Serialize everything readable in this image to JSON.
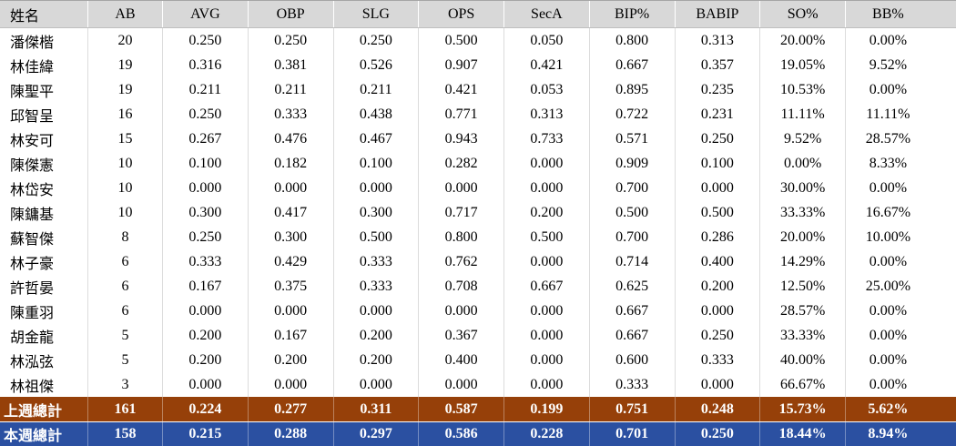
{
  "chart_data": {
    "type": "table",
    "columns": [
      "姓名",
      "AB",
      "AVG",
      "OBP",
      "SLG",
      "OPS",
      "SecA",
      "BIP%",
      "BABIP",
      "SO%",
      "BB%"
    ],
    "players": [
      {
        "name": "潘傑楷",
        "stats": [
          "20",
          "0.250",
          "0.250",
          "0.250",
          "0.500",
          "0.050",
          "0.800",
          "0.313",
          "20.00%",
          "0.00%"
        ]
      },
      {
        "name": "林佳緯",
        "stats": [
          "19",
          "0.316",
          "0.381",
          "0.526",
          "0.907",
          "0.421",
          "0.667",
          "0.357",
          "19.05%",
          "9.52%"
        ]
      },
      {
        "name": "陳聖平",
        "stats": [
          "19",
          "0.211",
          "0.211",
          "0.211",
          "0.421",
          "0.053",
          "0.895",
          "0.235",
          "10.53%",
          "0.00%"
        ]
      },
      {
        "name": "邱智呈",
        "stats": [
          "16",
          "0.250",
          "0.333",
          "0.438",
          "0.771",
          "0.313",
          "0.722",
          "0.231",
          "11.11%",
          "11.11%"
        ]
      },
      {
        "name": "林安可",
        "stats": [
          "15",
          "0.267",
          "0.476",
          "0.467",
          "0.943",
          "0.733",
          "0.571",
          "0.250",
          "9.52%",
          "28.57%"
        ]
      },
      {
        "name": "陳傑憲",
        "stats": [
          "10",
          "0.100",
          "0.182",
          "0.100",
          "0.282",
          "0.000",
          "0.909",
          "0.100",
          "0.00%",
          "8.33%"
        ]
      },
      {
        "name": "林岱安",
        "stats": [
          "10",
          "0.000",
          "0.000",
          "0.000",
          "0.000",
          "0.000",
          "0.700",
          "0.000",
          "30.00%",
          "0.00%"
        ]
      },
      {
        "name": "陳鏞基",
        "stats": [
          "10",
          "0.300",
          "0.417",
          "0.300",
          "0.717",
          "0.200",
          "0.500",
          "0.500",
          "33.33%",
          "16.67%"
        ]
      },
      {
        "name": "蘇智傑",
        "stats": [
          "8",
          "0.250",
          "0.300",
          "0.500",
          "0.800",
          "0.500",
          "0.700",
          "0.286",
          "20.00%",
          "10.00%"
        ]
      },
      {
        "name": "林子豪",
        "stats": [
          "6",
          "0.333",
          "0.429",
          "0.333",
          "0.762",
          "0.000",
          "0.714",
          "0.400",
          "14.29%",
          "0.00%"
        ]
      },
      {
        "name": "許哲晏",
        "stats": [
          "6",
          "0.167",
          "0.375",
          "0.333",
          "0.708",
          "0.667",
          "0.625",
          "0.200",
          "12.50%",
          "25.00%"
        ]
      },
      {
        "name": "陳重羽",
        "stats": [
          "6",
          "0.000",
          "0.000",
          "0.000",
          "0.000",
          "0.000",
          "0.667",
          "0.000",
          "28.57%",
          "0.00%"
        ]
      },
      {
        "name": "胡金龍",
        "stats": [
          "5",
          "0.200",
          "0.167",
          "0.200",
          "0.367",
          "0.000",
          "0.667",
          "0.250",
          "33.33%",
          "0.00%"
        ]
      },
      {
        "name": "林泓弦",
        "stats": [
          "5",
          "0.200",
          "0.200",
          "0.200",
          "0.400",
          "0.000",
          "0.600",
          "0.333",
          "40.00%",
          "0.00%"
        ]
      },
      {
        "name": "林祖傑",
        "stats": [
          "3",
          "0.000",
          "0.000",
          "0.000",
          "0.000",
          "0.000",
          "0.333",
          "0.000",
          "66.67%",
          "0.00%"
        ]
      }
    ],
    "totals": [
      {
        "label": "上週總計",
        "stats": [
          "161",
          "0.224",
          "0.277",
          "0.311",
          "0.587",
          "0.199",
          "0.751",
          "0.248",
          "15.73%",
          "5.62%"
        ]
      },
      {
        "label": "本週總計",
        "stats": [
          "158",
          "0.215",
          "0.288",
          "0.297",
          "0.586",
          "0.228",
          "0.701",
          "0.250",
          "18.44%",
          "8.94%"
        ]
      }
    ]
  },
  "colors": {
    "header_bg": "#d8d8d8",
    "body_bg": "#ffffff",
    "last_week_total_bg": "#964009",
    "this_week_total_bg": "#2b50a1",
    "total_text": "#ffffff"
  }
}
